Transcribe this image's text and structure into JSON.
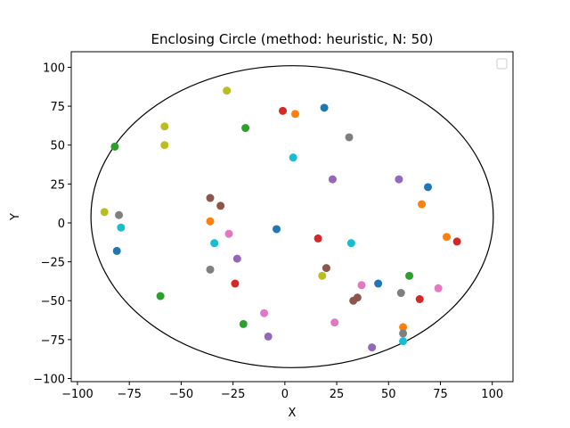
{
  "chart_data": {
    "type": "scatter",
    "title": "Enclosing Circle (method: heuristic, N: 50)",
    "xlabel": "X",
    "ylabel": "Y",
    "xlim": [
      -103,
      110
    ],
    "ylim": [
      -102,
      110
    ],
    "xticks": [
      -100,
      -75,
      -50,
      -25,
      0,
      25,
      50,
      75,
      100
    ],
    "yticks": [
      -100,
      -75,
      -50,
      -25,
      0,
      25,
      50,
      75,
      100
    ],
    "grid": false,
    "legend": "top-right (empty)",
    "circle": {
      "cx": 3.5,
      "cy": 4,
      "r": 97
    },
    "points": [
      {
        "x": -28,
        "y": 85,
        "color": "#bcbd22"
      },
      {
        "x": 19,
        "y": 74,
        "color": "#1f77b4"
      },
      {
        "x": -1,
        "y": 72,
        "color": "#d62728"
      },
      {
        "x": 5,
        "y": 70,
        "color": "#ff7f0e"
      },
      {
        "x": -58,
        "y": 62,
        "color": "#bcbd22"
      },
      {
        "x": -19,
        "y": 61,
        "color": "#2ca02c"
      },
      {
        "x": 31,
        "y": 55,
        "color": "#7f7f7f"
      },
      {
        "x": -58,
        "y": 50,
        "color": "#bcbd22"
      },
      {
        "x": -82,
        "y": 49,
        "color": "#2ca02c"
      },
      {
        "x": 4,
        "y": 42,
        "color": "#17becf"
      },
      {
        "x": 23,
        "y": 28,
        "color": "#9467bd"
      },
      {
        "x": 55,
        "y": 28,
        "color": "#9467bd"
      },
      {
        "x": 69,
        "y": 23,
        "color": "#1f77b4"
      },
      {
        "x": -36,
        "y": 16,
        "color": "#8c564b"
      },
      {
        "x": 66,
        "y": 12,
        "color": "#ff7f0e"
      },
      {
        "x": -31,
        "y": 11,
        "color": "#8c564b"
      },
      {
        "x": -87,
        "y": 7,
        "color": "#bcbd22"
      },
      {
        "x": -80,
        "y": 5,
        "color": "#7f7f7f"
      },
      {
        "x": -36,
        "y": 1,
        "color": "#ff7f0e"
      },
      {
        "x": -79,
        "y": -3,
        "color": "#17becf"
      },
      {
        "x": -4,
        "y": -4,
        "color": "#1f77b4"
      },
      {
        "x": -27,
        "y": -7,
        "color": "#e377c2"
      },
      {
        "x": 78,
        "y": -9,
        "color": "#ff7f0e"
      },
      {
        "x": 16,
        "y": -10,
        "color": "#d62728"
      },
      {
        "x": 83,
        "y": -12,
        "color": "#d62728"
      },
      {
        "x": -34,
        "y": -13,
        "color": "#17becf"
      },
      {
        "x": 32,
        "y": -13,
        "color": "#17becf"
      },
      {
        "x": -81,
        "y": -18,
        "color": "#1f77b4"
      },
      {
        "x": -23,
        "y": -23,
        "color": "#9467bd"
      },
      {
        "x": 20,
        "y": -29,
        "color": "#8c564b"
      },
      {
        "x": -36,
        "y": -30,
        "color": "#7f7f7f"
      },
      {
        "x": 18,
        "y": -34,
        "color": "#bcbd22"
      },
      {
        "x": 60,
        "y": -34,
        "color": "#2ca02c"
      },
      {
        "x": -24,
        "y": -39,
        "color": "#d62728"
      },
      {
        "x": 45,
        "y": -39,
        "color": "#1f77b4"
      },
      {
        "x": 37,
        "y": -40,
        "color": "#e377c2"
      },
      {
        "x": 74,
        "y": -42,
        "color": "#e377c2"
      },
      {
        "x": 56,
        "y": -45,
        "color": "#7f7f7f"
      },
      {
        "x": -60,
        "y": -47,
        "color": "#2ca02c"
      },
      {
        "x": 35,
        "y": -48,
        "color": "#8c564b"
      },
      {
        "x": 65,
        "y": -49,
        "color": "#d62728"
      },
      {
        "x": 33,
        "y": -50,
        "color": "#8c564b"
      },
      {
        "x": -10,
        "y": -58,
        "color": "#e377c2"
      },
      {
        "x": 24,
        "y": -64,
        "color": "#e377c2"
      },
      {
        "x": -20,
        "y": -65,
        "color": "#2ca02c"
      },
      {
        "x": 57,
        "y": -67,
        "color": "#ff7f0e"
      },
      {
        "x": 57,
        "y": -71,
        "color": "#7f7f7f"
      },
      {
        "x": -8,
        "y": -73,
        "color": "#9467bd"
      },
      {
        "x": 57,
        "y": -76,
        "color": "#17becf"
      },
      {
        "x": 42,
        "y": -80,
        "color": "#9467bd"
      }
    ]
  }
}
